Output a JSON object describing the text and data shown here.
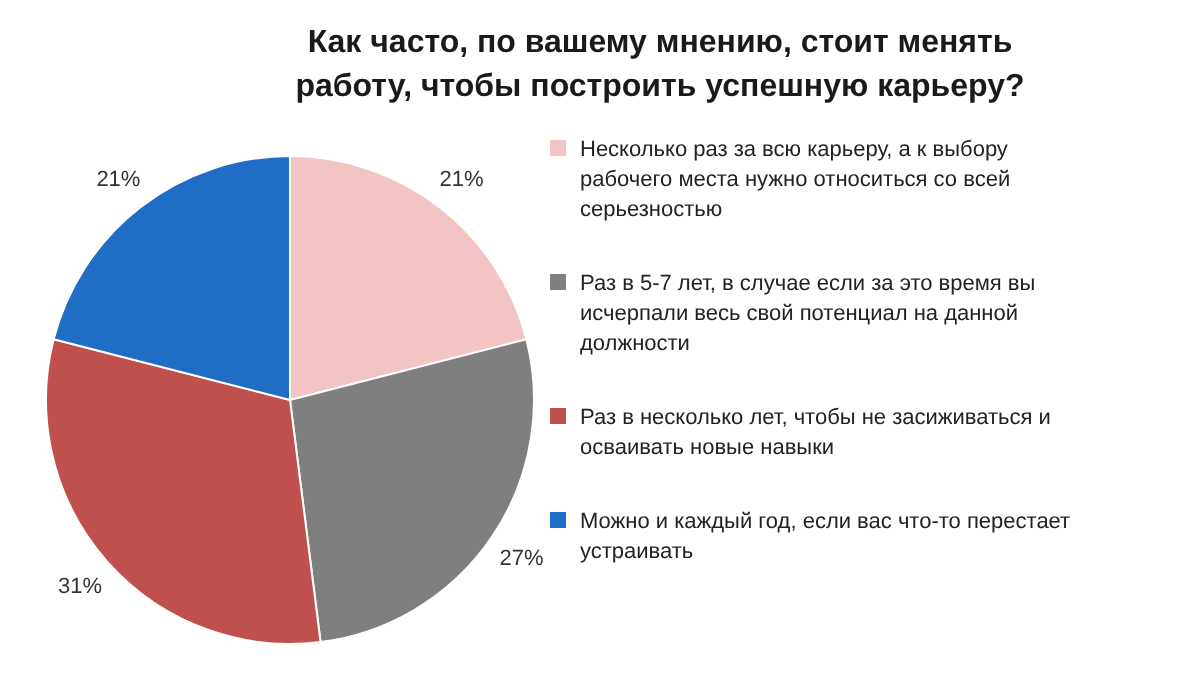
{
  "chart_data": {
    "type": "pie",
    "title": "Как часто, по вашему мнению, стоит менять работу, чтобы построить успешную карьеру?",
    "categories": [
      "Несколько раз за всю карьеру, а к выбору рабочего места нужно относиться со всей серьезностью",
      "Раз в 5-7 лет, в случае если за это время вы исчерпали весь свой потенциал на данной должности",
      "Раз в несколько лет, чтобы не засиживаться и осваивать новые навыки",
      "Можно и каждый год, если вас что-то перестает устраивать"
    ],
    "values": [
      21,
      27,
      31,
      21
    ],
    "colors": [
      "#f2c4c3",
      "#7f7f7f",
      "#c0504d",
      "#1f6dc4"
    ],
    "value_labels": [
      "21%",
      "27%",
      "31%",
      "21%"
    ],
    "legend": "right"
  }
}
